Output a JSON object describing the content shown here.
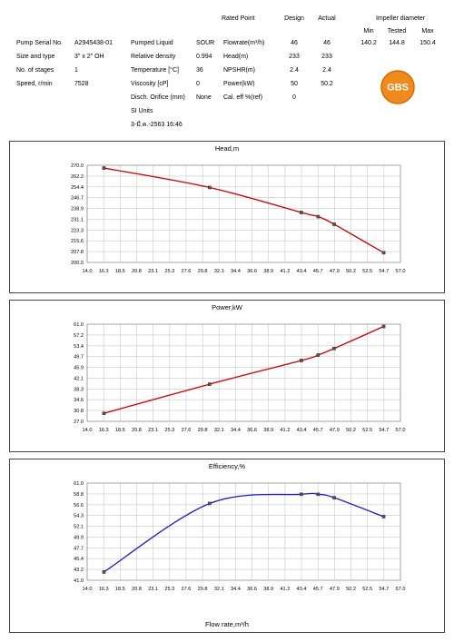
{
  "header": {
    "rated_point": "Rated Point",
    "design": "Design",
    "actual": "Actual",
    "impeller_diameter": "Impeller diameter",
    "imp_min": "Min",
    "imp_tested": "Tested",
    "imp_max": "Max",
    "imp_min_val": "140.2",
    "imp_tested_val": "144.8",
    "imp_max_val": "150.4",
    "col1": [
      {
        "label": "Pump Serial No.",
        "value": "A2945438-01"
      },
      {
        "label": "Size and type",
        "value": "3\" x 2\" OH"
      },
      {
        "label": "No. of stages",
        "value": "1"
      },
      {
        "label": "Speed, r/min",
        "value": "7528"
      }
    ],
    "col2": [
      {
        "label": "Pumped Liquid",
        "value": "SOUR"
      },
      {
        "label": "Relative density",
        "value": "0.994"
      },
      {
        "label": "Temperature [°C]",
        "value": "36"
      },
      {
        "label": "Viscosity [cP]",
        "value": "0"
      },
      {
        "label": "Disch. Orifice (mm)",
        "value": "None"
      }
    ],
    "si_units": "SI Units",
    "date": "3-มี.ค.-2563 16:46",
    "rated": [
      {
        "label": "Flowrate(m³/h)",
        "design": "46",
        "actual": "46"
      },
      {
        "label": "Head(m)",
        "design": "233",
        "actual": "233"
      },
      {
        "label": "NPSHR(m)",
        "design": "2.4",
        "actual": "2.4"
      },
      {
        "label": "Power(kW)",
        "design": "50",
        "actual": "50.2"
      },
      {
        "label": "Cal. eff %(ref)",
        "design": "0",
        "actual": ""
      }
    ],
    "logo_text": "GBS",
    "logo_color": "#f08a1c"
  },
  "x_axis_label": "Flow rate,m³/h",
  "chart_data": [
    {
      "type": "line",
      "title": "Head,m",
      "color": "#cc0000",
      "x_ticks": [
        "14.0",
        "16.3",
        "18.5",
        "20.8",
        "23.1",
        "25.3",
        "27.6",
        "29.8",
        "32.1",
        "34.4",
        "36.6",
        "38.9",
        "41.2",
        "43.4",
        "45.7",
        "47.9",
        "50.2",
        "52.5",
        "54.7",
        "57.0"
      ],
      "y_ticks": [
        "270.0",
        "262.2",
        "254.4",
        "246.7",
        "238.9",
        "231.1",
        "223.3",
        "215.6",
        "207.8",
        "200.0"
      ],
      "xlim": [
        14.0,
        57.0
      ],
      "ylim": [
        200.0,
        270.0
      ],
      "x": [
        16.3,
        30.8,
        43.4,
        45.7,
        47.9,
        54.7
      ],
      "y": [
        268.0,
        254.0,
        236.0,
        233.0,
        227.5,
        207.0
      ]
    },
    {
      "type": "line",
      "title": "Power,kW",
      "color": "#cc0000",
      "x_ticks": [
        "14.0",
        "16.3",
        "18.5",
        "20.8",
        "23.1",
        "25.3",
        "27.6",
        "29.8",
        "32.1",
        "34.4",
        "36.6",
        "38.9",
        "41.2",
        "43.4",
        "45.7",
        "47.9",
        "50.2",
        "52.5",
        "54.7",
        "57.0"
      ],
      "y_ticks": [
        "61.0",
        "57.2",
        "53.4",
        "49.7",
        "45.9",
        "42.1",
        "38.3",
        "34.6",
        "30.8",
        "27.0"
      ],
      "xlim": [
        14.0,
        57.0
      ],
      "ylim": [
        27.0,
        61.0
      ],
      "x": [
        16.3,
        30.8,
        43.4,
        45.7,
        47.9,
        54.7
      ],
      "y": [
        29.8,
        40.0,
        48.3,
        50.2,
        52.5,
        60.2
      ]
    },
    {
      "type": "line",
      "title": "Efficiency,%",
      "color": "#1c1ccc",
      "x_ticks": [
        "14.0",
        "16.3",
        "18.5",
        "20.8",
        "23.1",
        "25.3",
        "27.6",
        "29.8",
        "32.1",
        "34.4",
        "36.6",
        "38.9",
        "41.2",
        "43.4",
        "45.7",
        "47.9",
        "50.2",
        "52.5",
        "54.7",
        "57.0"
      ],
      "y_ticks": [
        "61.0",
        "58.8",
        "56.6",
        "54.3",
        "52.1",
        "49.9",
        "47.7",
        "45.4",
        "43.2",
        "41.0"
      ],
      "xlim": [
        14.0,
        57.0
      ],
      "ylim": [
        41.0,
        61.0
      ],
      "x": [
        16.3,
        30.8,
        43.4,
        45.7,
        47.9,
        54.7
      ],
      "y": [
        42.7,
        56.8,
        58.7,
        58.7,
        58.0,
        54.1
      ]
    }
  ]
}
